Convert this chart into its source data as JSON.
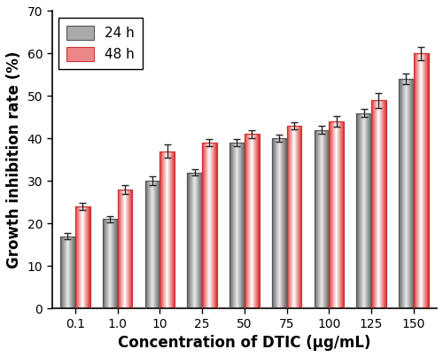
{
  "categories": [
    "0.1",
    "1.0",
    "10",
    "25",
    "50",
    "75",
    "100",
    "125",
    "150"
  ],
  "values_24h": [
    17.0,
    21.0,
    30.0,
    32.0,
    39.0,
    40.0,
    42.0,
    46.0,
    54.0
  ],
  "values_48h": [
    24.0,
    28.0,
    37.0,
    39.0,
    41.0,
    43.0,
    44.0,
    49.0,
    60.0
  ],
  "errors_24h": [
    0.7,
    0.8,
    1.0,
    0.8,
    0.8,
    0.8,
    1.0,
    1.0,
    1.2
  ],
  "errors_48h": [
    0.8,
    1.0,
    1.5,
    0.8,
    1.0,
    0.8,
    1.2,
    1.8,
    1.5
  ],
  "xlabel": "Concentration of DTIC (μg/mL)",
  "ylabel": "Growth inhibition rate (%)",
  "ylim": [
    0,
    70
  ],
  "yticks": [
    0,
    10,
    20,
    30,
    40,
    50,
    60,
    70
  ],
  "legend_labels": [
    "24 h",
    "48 h"
  ],
  "bar_width": 0.35,
  "color_24h_edge": "#555555",
  "color_24h_dark": "#666666",
  "color_24h_light": "#e8e8e8",
  "color_48h_edge": "#cc3333",
  "color_48h_dark": "#dd3333",
  "color_48h_light": "#ffffff",
  "error_color": "#222222",
  "background_color": "#ffffff",
  "label_fontsize": 12,
  "tick_fontsize": 10,
  "legend_fontsize": 11
}
